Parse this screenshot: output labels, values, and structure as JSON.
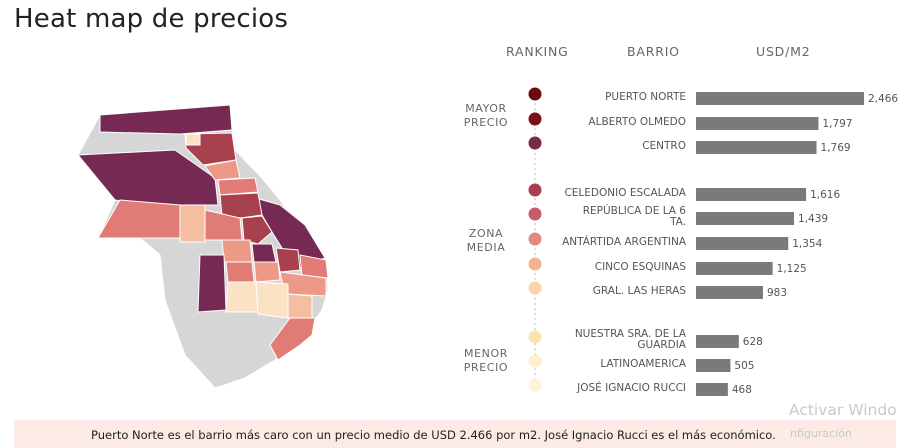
{
  "page": {
    "title": "Heat map de precios"
  },
  "headers": {
    "ranking": "RANKING",
    "barrio": "BARRIO",
    "usd": "USD/M2"
  },
  "groups": [
    {
      "lines": [
        "MAYOR",
        "PRECIO"
      ]
    },
    {
      "lines": [
        "ZONA",
        "MEDIA"
      ]
    },
    {
      "lines": [
        "MENOR",
        "PRECIO"
      ]
    }
  ],
  "footer": {
    "text": "Puerto Norte es el barrio más caro con un precio medio de USD 2.466 por m2. José Ignacio Rucci es el más económico."
  },
  "watermark": {
    "line1": "Activar Windo",
    "line2": "nfiguración"
  },
  "chart_data": {
    "type": "bar",
    "orientation": "horizontal",
    "title": "Heat map de precios",
    "categories": [
      "PUERTO NORTE",
      "ALBERTO OLMEDO",
      "CENTRO",
      "CELEDONIO ESCALADA",
      "REPÚBLICA DE LA 6 TA.",
      "ANTÁRTIDA ARGENTINA",
      "CINCO ESQUINAS",
      "GRAL. LAS HERAS",
      "NUESTRA SRA. DE LA GUARDIA",
      "LATINOAMERICA",
      "JOSÉ IGNACIO RUCCI"
    ],
    "values": [
      2466,
      1797,
      1769,
      1616,
      1439,
      1354,
      1125,
      983,
      628,
      505,
      468
    ],
    "value_labels": [
      "2,466",
      "1,797",
      "1,769",
      "1,616",
      "1,439",
      "1,354",
      "1,125",
      "983",
      "628",
      "505",
      "468"
    ],
    "rank_colors": [
      "#6b0a12",
      "#7a1018",
      "#7a2a4d",
      "#a8404e",
      "#c85a6a",
      "#e08a80",
      "#f4b290",
      "#fbd5a8",
      "#fbe5ad",
      "#fdf0cc",
      "#fdf3d6"
    ],
    "bar_color": "#7a7a7a",
    "xlim": [
      0,
      2466
    ],
    "map_colors": {
      "dark": "#762952",
      "red": "#e07b76",
      "coral": "#ee9888",
      "peach": "#f6bea0",
      "light": "#fbe2c4",
      "gray": "#d6d6d6"
    }
  }
}
